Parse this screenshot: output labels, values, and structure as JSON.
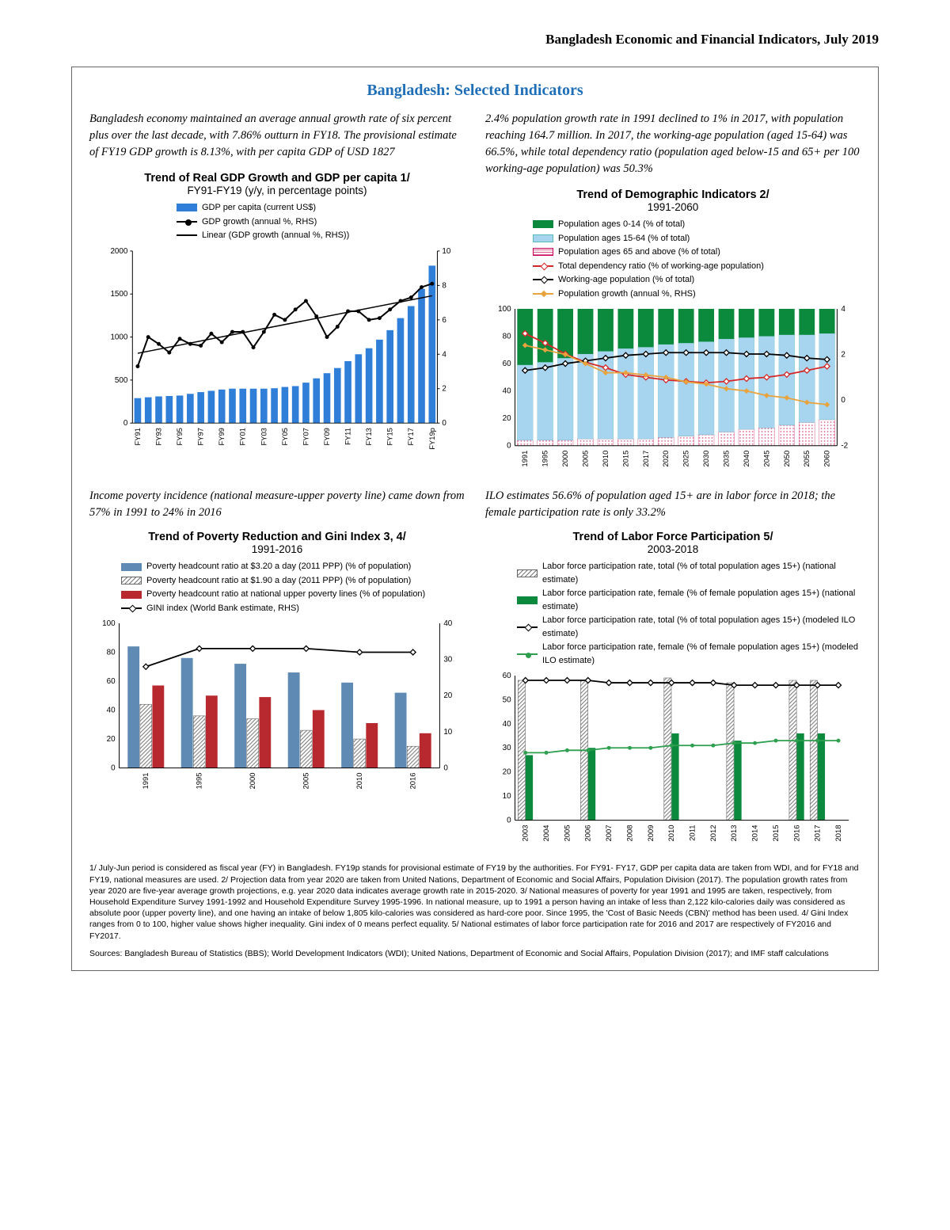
{
  "doc_header": "Bangladesh Economic and Financial Indicators, July 2019",
  "main_title": "Bangladesh: Selected Indicators",
  "left_intro": "Bangladesh economy maintained an average annual growth rate of six percent plus over the last decade, with 7.86% outturn in FY18. The provisional estimate of FY19 GDP growth is 8.13%, with per capita GDP of USD 1827",
  "right_intro": "2.4% population growth rate in 1991 declined to 1% in 2017, with population reaching 164.7 million. In 2017, the working-age population (aged 15-64) was 66.5%, while total dependency ratio (population aged below-15 and 65+ per 100 working-age population) was 50.3%",
  "chart1": {
    "title": "Trend of Real GDP Growth and GDP per capita 1/",
    "subtitle": "FY91-FY19 (y/y, in percentage points)",
    "legend": [
      "GDP per capita (current US$)",
      "GDP growth (annual %, RHS)",
      "Linear (GDP growth (annual %, RHS))"
    ],
    "x_labels": [
      "FY91",
      "FY93",
      "FY95",
      "FY97",
      "FY99",
      "FY01",
      "FY03",
      "FY05",
      "FY07",
      "FY09",
      "FY11",
      "FY13",
      "FY15",
      "FY17",
      "FY19p"
    ],
    "y_left": {
      "min": 0,
      "max": 2000,
      "ticks": [
        0,
        500,
        1000,
        1500,
        2000
      ]
    },
    "y_right": {
      "min": 0,
      "max": 10,
      "ticks": [
        0,
        2,
        4,
        6,
        8,
        10
      ]
    },
    "bar_color": "#2f7ed8",
    "bars": [
      290,
      300,
      310,
      315,
      320,
      340,
      360,
      375,
      390,
      400,
      400,
      400,
      400,
      405,
      420,
      430,
      470,
      520,
      580,
      640,
      720,
      800,
      870,
      970,
      1080,
      1220,
      1360,
      1560,
      1830
    ],
    "line_color": "#000000",
    "line": [
      3.3,
      5.0,
      4.6,
      4.1,
      4.9,
      4.6,
      4.5,
      5.2,
      4.7,
      5.3,
      5.3,
      4.4,
      5.3,
      6.3,
      6.0,
      6.6,
      7.1,
      6.2,
      5.0,
      5.6,
      6.5,
      6.5,
      6.0,
      6.1,
      6.6,
      7.1,
      7.3,
      7.9,
      8.1
    ]
  },
  "chart2": {
    "title": "Trend of Demographic Indicators 2/",
    "subtitle": "1991-2060",
    "legend": [
      "Population ages 0-14 (% of total)",
      "Population ages 15-64 (% of total)",
      "Population ages 65 and above (% of total)",
      "Total dependency ratio (% of working-age population)",
      "Working-age population (% of total)",
      "Population growth (annual %, RHS)"
    ],
    "x_labels": [
      "1991",
      "1995",
      "2000",
      "2005",
      "2010",
      "2015",
      "2017",
      "2020",
      "2025",
      "2030",
      "2035",
      "2040",
      "2045",
      "2050",
      "2055",
      "2060"
    ],
    "y_left": {
      "min": 0,
      "max": 100,
      "ticks": [
        0,
        20,
        40,
        60,
        80,
        100
      ]
    },
    "y_right": {
      "min": -2,
      "max": 4,
      "ticks": [
        -2,
        0,
        2,
        4
      ]
    },
    "colors": {
      "c0": "#0b8a3e",
      "c1": "#a7d5ef",
      "c2": "#f2b8cf",
      "dep": "#d62728",
      "wap": "#000000",
      "pg": "#e8a33d"
    },
    "stack": [
      {
        "a65": 4,
        "a15": 55,
        "a0": 41
      },
      {
        "a65": 4,
        "a15": 57,
        "a0": 39
      },
      {
        "a65": 4,
        "a15": 60,
        "a0": 36
      },
      {
        "a65": 5,
        "a15": 62,
        "a0": 33
      },
      {
        "a65": 5,
        "a15": 64,
        "a0": 31
      },
      {
        "a65": 5,
        "a15": 66,
        "a0": 29
      },
      {
        "a65": 5,
        "a15": 67,
        "a0": 28
      },
      {
        "a65": 6,
        "a15": 68,
        "a0": 26
      },
      {
        "a65": 7,
        "a15": 68,
        "a0": 25
      },
      {
        "a65": 8,
        "a15": 68,
        "a0": 24
      },
      {
        "a65": 10,
        "a15": 68,
        "a0": 22
      },
      {
        "a65": 12,
        "a15": 67,
        "a0": 21
      },
      {
        "a65": 13,
        "a15": 67,
        "a0": 20
      },
      {
        "a65": 15,
        "a15": 66,
        "a0": 19
      },
      {
        "a65": 17,
        "a15": 64,
        "a0": 19
      },
      {
        "a65": 19,
        "a15": 63,
        "a0": 18
      }
    ],
    "dep": [
      82,
      75,
      67,
      61,
      57,
      52,
      50,
      48,
      47,
      46,
      47,
      49,
      50,
      52,
      55,
      58
    ],
    "wap": [
      55,
      57,
      60,
      62,
      64,
      66,
      67,
      68,
      68,
      68,
      68,
      67,
      67,
      66,
      64,
      63
    ],
    "pg": [
      2.4,
      2.2,
      2.0,
      1.6,
      1.2,
      1.2,
      1.1,
      1.0,
      0.8,
      0.7,
      0.5,
      0.4,
      0.2,
      0.1,
      -0.1,
      -0.2
    ]
  },
  "left_mid": "Income poverty incidence (national measure-upper poverty line) came down from 57% in 1991 to 24% in 2016",
  "right_mid": "ILO estimates 56.6% of population aged 15+ are in labor force in 2018; the female participation rate is only 33.2%",
  "chart3": {
    "title": "Trend of Poverty Reduction and Gini Index 3, 4/",
    "subtitle": "1991-2016",
    "legend": [
      "Poverty headcount ratio at $3.20 a day (2011 PPP) (% of population)",
      "Poverty headcount ratio at $1.90 a day (2011 PPP) (% of population)",
      "Poverty headcount ratio at national upper poverty lines (% of population)",
      "GINI index (World Bank estimate, RHS)"
    ],
    "x_labels": [
      "1991",
      "1995",
      "2000",
      "2005",
      "2010",
      "2016"
    ],
    "y_left": {
      "min": 0,
      "max": 100,
      "ticks": [
        0,
        20,
        40,
        60,
        80,
        100
      ]
    },
    "y_right": {
      "min": 0,
      "max": 40,
      "ticks": [
        0,
        10,
        20,
        30,
        40
      ]
    },
    "colors": {
      "b1": "#5e8ab4",
      "b2": "hatch",
      "b3": "#b8292f",
      "gini": "#000"
    },
    "b1": [
      84,
      76,
      72,
      66,
      59,
      52
    ],
    "b2": [
      44,
      36,
      34,
      26,
      20,
      15
    ],
    "b3": [
      57,
      50,
      49,
      40,
      31,
      24
    ],
    "gini": [
      28,
      33,
      33,
      33,
      32,
      32
    ]
  },
  "chart4": {
    "title": "Trend of Labor Force Participation 5/",
    "subtitle": "2003-2018",
    "legend": [
      "Labor force participation rate, total (% of total population ages 15+) (national estimate)",
      "Labor force participation rate, female (% of female population ages 15+) (national estimate)",
      "Labor force participation rate, total (% of total population ages 15+) (modeled ILO estimate)",
      "Labor force participation rate, female (% of female population ages 15+) (modeled ILO estimate)"
    ],
    "x_labels": [
      "2003",
      "2004",
      "2005",
      "2006",
      "2007",
      "2008",
      "2009",
      "2010",
      "2011",
      "2012",
      "2013",
      "2014",
      "2015",
      "2016",
      "2017",
      "2018"
    ],
    "y": {
      "min": 0,
      "max": 60,
      "ticks": [
        0,
        10,
        20,
        30,
        40,
        50,
        60
      ]
    },
    "colors": {
      "nat_t": "hatch",
      "nat_f": "#0b8a3e",
      "ilo_t": "#000",
      "ilo_f": "#2e9e4f"
    },
    "nat_t": {
      "2003": 58,
      "2006": 58,
      "2010": 59,
      "2013": 57,
      "2016": 58,
      "2017": 58
    },
    "nat_f": {
      "2003": 27,
      "2006": 30,
      "2010": 36,
      "2013": 33,
      "2016": 36,
      "2017": 36
    },
    "ilo_t": [
      58,
      58,
      58,
      58,
      57,
      57,
      57,
      57,
      57,
      57,
      56,
      56,
      56,
      56,
      56,
      56
    ],
    "ilo_f": [
      28,
      28,
      29,
      29,
      30,
      30,
      30,
      31,
      31,
      31,
      32,
      32,
      33,
      33,
      33,
      33
    ]
  },
  "footnote": "1/ July-Jun period is considered as fiscal year (FY) in Bangladesh. FY19p stands for provisional estimate of FY19 by the authorities. For FY91- FY17, GDP per capita data are taken from WDI, and for FY18 and FY19, national measures are used. 2/ Projection data from year 2020 are taken from United Nations, Department of Economic and Social Affairs, Population Division (2017). The population growth rates from year 2020 are five-year average growth projections, e.g. year 2020 data indicates average growth rate in 2015-2020. 3/ National measures of poverty for year 1991 and 1995 are taken, respectively, from Household Expenditure Survey 1991-1992 and Household Expenditure Survey 1995-1996. In national measure, up to 1991 a person having an intake of less than 2,122 kilo-calories daily was considered as absolute poor (upper poverty line), and one having an intake of below 1,805 kilo-calories was considered as hard-core poor. Since 1995, the 'Cost of Basic Needs (CBN)' method has been used. 4/ Gini Index ranges from 0 to 100, higher value shows higher inequality. Gini index of 0 means perfect equality. 5/ National estimates of labor force participation rate for 2016 and 2017 are respectively of FY2016 and FY2017.",
  "source": "Sources: Bangladesh Bureau of Statistics (BBS); World Development Indicators (WDI); United Nations, Department of Economic and Social Affairs, Population Division (2017); and IMF staff calculations"
}
